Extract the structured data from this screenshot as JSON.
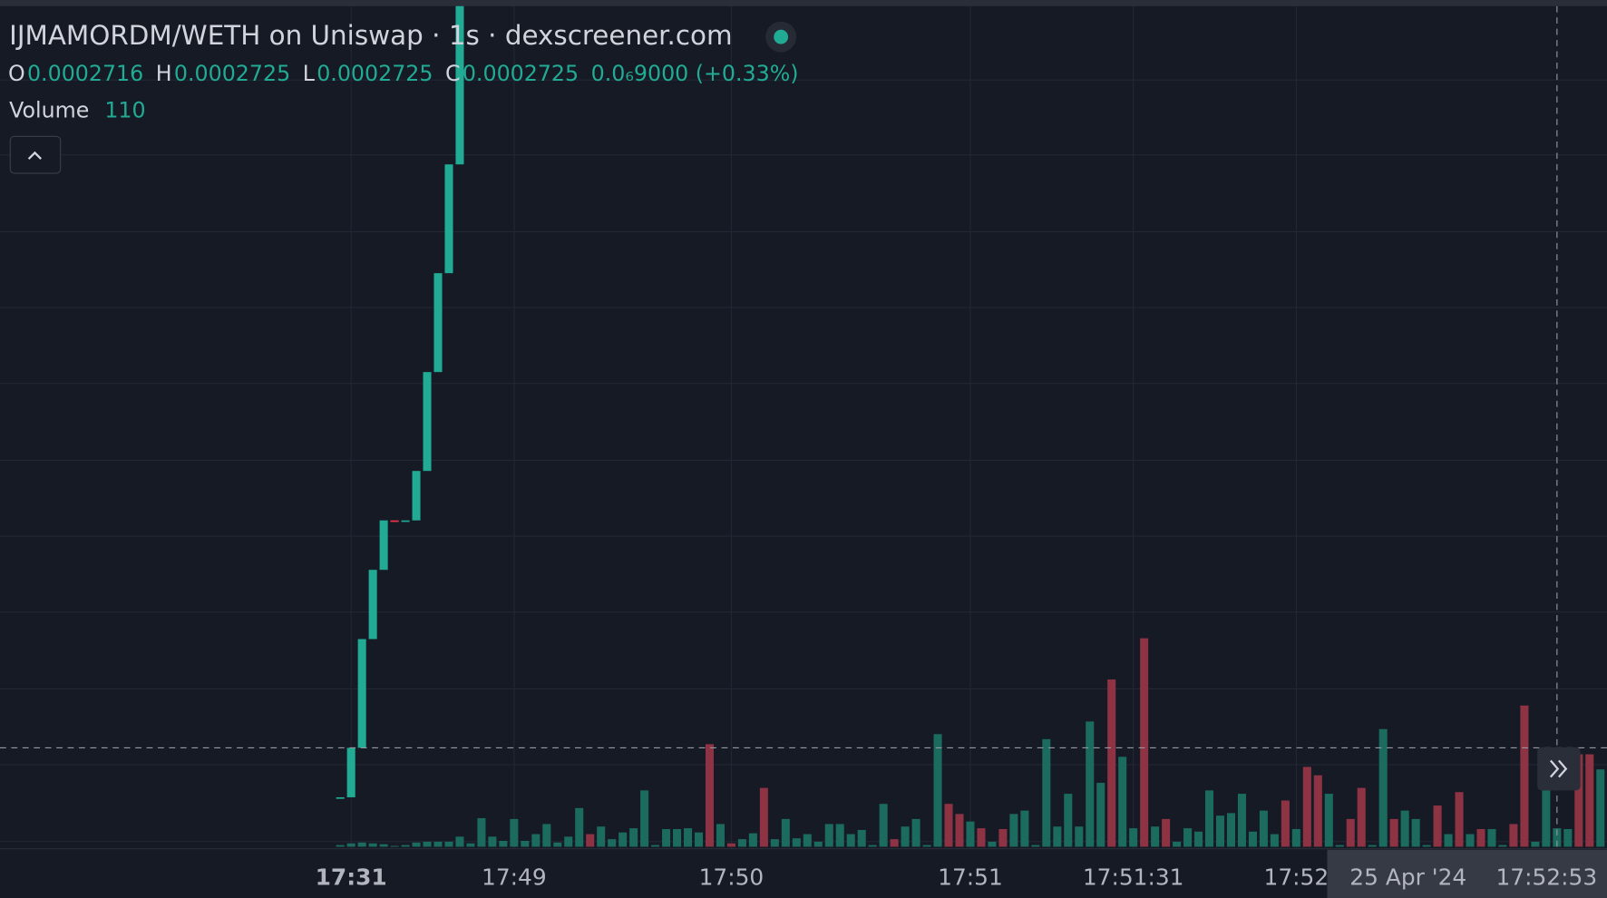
{
  "header": {
    "title": "IJMAMORDM/WETH on Uniswap · 1s · dexscreener.com",
    "ohlc": [
      {
        "label": "O",
        "value": 0.0002716
      },
      {
        "label": "H",
        "value": 0.0002725
      },
      {
        "label": "L",
        "value": 0.0002725
      },
      {
        "label": "C",
        "value": 0.0002725
      }
    ],
    "change": "0.0₆9000 (+0.33%)",
    "volume_label": "Volume"
  },
  "chart_data": {
    "type": "candlestick",
    "open": [
      0.0002545,
      0.0002545,
      0.000255,
      0.0002561,
      0.0002568,
      0.0002573,
      0.0002573,
      0.0002573,
      0.0002578,
      0.0002588,
      0.0002598,
      0.0002609
    ],
    "close": [
      0.0002545,
      0.000255,
      0.0002561,
      0.0002568,
      0.0002573,
      0.0002573,
      0.0002573,
      0.0002578,
      0.0002588,
      0.0002598,
      0.0002609,
      0.000263
    ],
    "candle_down": [
      5
    ],
    "ylim": [
      0.000254,
      0.0002625
    ],
    "volume": {
      "values": [
        10,
        20,
        25,
        20,
        15,
        5,
        10,
        25,
        30,
        30,
        30,
        60,
        20,
        170,
        60,
        35,
        165,
        35,
        75,
        135,
        25,
        60,
        230,
        75,
        120,
        45,
        85,
        110,
        335,
        10,
        105,
        105,
        110,
        85,
        610,
        135,
        20,
        45,
        80,
        350,
        45,
        165,
        50,
        75,
        30,
        135,
        135,
        75,
        100,
        10,
        255,
        45,
        120,
        165,
        10,
        670,
        255,
        195,
        150,
        110,
        30,
        105,
        195,
        215,
        10,
        640,
        120,
        315,
        120,
        745,
        380,
        995,
        535,
        110,
        1240,
        120,
        165,
        30,
        110,
        90,
        335,
        185,
        200,
        315,
        90,
        215,
        75,
        275,
        105,
        475,
        425,
        315,
        10,
        165,
        350,
        10,
        700,
        165,
        215,
        165,
        10,
        245,
        75,
        325,
        75,
        105,
        105,
        10,
        135,
        840,
        30,
        335,
        110,
        105,
        550,
        550,
        460
      ],
      "down": [
        23,
        34,
        36,
        39,
        51,
        56,
        57,
        59,
        61,
        71,
        74,
        76,
        87,
        89,
        90,
        93,
        94,
        97,
        101,
        103,
        105,
        108,
        109,
        114,
        115
      ],
      "vlim": [
        0,
        1500
      ]
    },
    "up_color": "#22ab94",
    "down_color": "#f23645",
    "volume_up_color": "#1c6b5f",
    "volume_down_color": "#8e3344",
    "xticks": [
      {
        "value": 1,
        "label": "17:31"
      },
      {
        "value": 16,
        "label": "17:49"
      },
      {
        "value": 36,
        "label": "17:50"
      },
      {
        "value": 58,
        "label": "17:51"
      },
      {
        "value": 73,
        "label": "17:51:31"
      },
      {
        "value": 88,
        "label": "17:52"
      }
    ],
    "crosshair": {
      "index": 112,
      "price": 0.000255,
      "date": "25 Apr '24",
      "time": "17:52:53"
    }
  }
}
